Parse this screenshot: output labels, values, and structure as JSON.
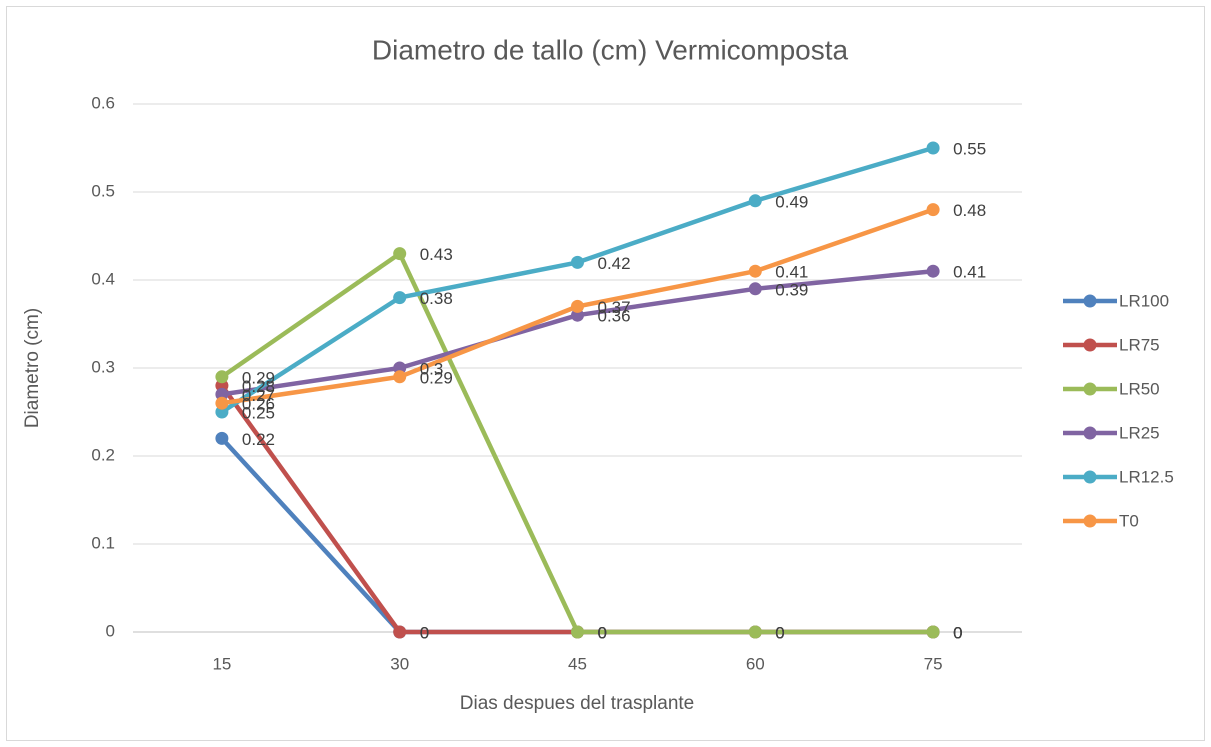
{
  "chart_data": {
    "type": "line",
    "title": "Diametro de tallo (cm) Vermicomposta",
    "x_label": "Dias despues del trasplante",
    "y_label": "Diametro (cm)",
    "categories": [
      "15",
      "30",
      "45",
      "60",
      "75"
    ],
    "series": [
      {
        "name": "LR100",
        "color": "#4f81bd",
        "values": [
          0.22,
          0,
          0,
          0,
          0
        ]
      },
      {
        "name": "LR75",
        "color": "#c0504d",
        "values": [
          0.28,
          0,
          0,
          0,
          0
        ]
      },
      {
        "name": "LR50",
        "color": "#9bbb59",
        "values": [
          0.29,
          0.43,
          0,
          0,
          0
        ]
      },
      {
        "name": "LR25",
        "color": "#8064a2",
        "values": [
          0.27,
          0.3,
          0.36,
          0.39,
          0.41
        ]
      },
      {
        "name": "LR12.5",
        "color": "#4bacc6",
        "values": [
          0.25,
          0.38,
          0.42,
          0.49,
          0.55
        ]
      },
      {
        "name": "T0",
        "color": "#f79646",
        "values": [
          0.26,
          0.29,
          0.37,
          0.41,
          0.48
        ]
      }
    ],
    "ylim": [
      0,
      0.6
    ],
    "yticks": [
      0,
      0.1,
      0.2,
      0.3,
      0.4,
      0.5,
      0.6
    ],
    "grid": true,
    "legend": "right"
  }
}
